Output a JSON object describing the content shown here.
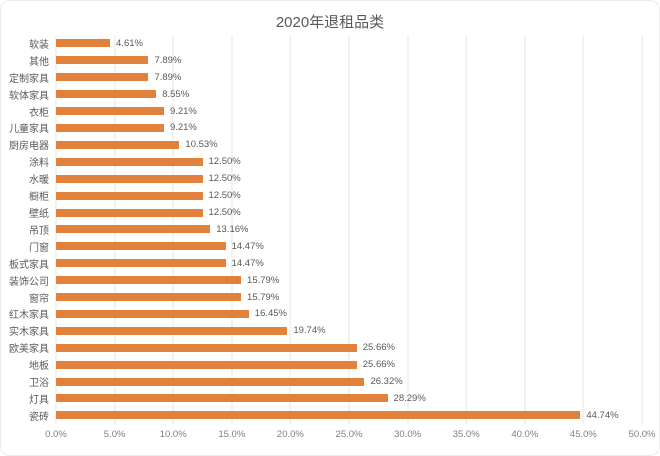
{
  "chart_data": {
    "type": "bar",
    "orientation": "horizontal",
    "title": "2020年退租品类",
    "categories": [
      "软装",
      "其他",
      "定制家具",
      "软体家具",
      "衣柜",
      "儿童家具",
      "厨房电器",
      "涂料",
      "水暖",
      "橱柜",
      "壁纸",
      "吊顶",
      "门窗",
      "板式家具",
      "装饰公司",
      "窗帘",
      "红木家具",
      "实木家具",
      "欧美家具",
      "地板",
      "卫浴",
      "灯具",
      "瓷砖"
    ],
    "values": [
      4.61,
      7.89,
      7.89,
      8.55,
      9.21,
      9.21,
      10.53,
      12.5,
      12.5,
      12.5,
      12.5,
      13.16,
      14.47,
      14.47,
      15.79,
      15.79,
      16.45,
      19.74,
      25.66,
      25.66,
      26.32,
      28.29,
      44.74
    ],
    "data_labels": [
      "4.61%",
      "7.89%",
      "7.89%",
      "8.55%",
      "9.21%",
      "9.21%",
      "10.53%",
      "12.50%",
      "12.50%",
      "12.50%",
      "12.50%",
      "13.16%",
      "14.47%",
      "14.47%",
      "15.79%",
      "15.79%",
      "16.45%",
      "19.74%",
      "25.66%",
      "25.66%",
      "26.32%",
      "28.29%",
      "44.74%"
    ],
    "x_ticks": [
      "0.0%",
      "5.0%",
      "10.0%",
      "15.0%",
      "20.0%",
      "25.0%",
      "30.0%",
      "35.0%",
      "40.0%",
      "45.0%",
      "50.0%"
    ],
    "xlim": [
      0,
      50
    ],
    "grid": true,
    "legend": "none",
    "bar_color": "#e2813c",
    "title_color": "#595959",
    "label_color": "#595959",
    "tick_color": "#7f7f7f",
    "gridline_color": "#e4e4e4"
  }
}
